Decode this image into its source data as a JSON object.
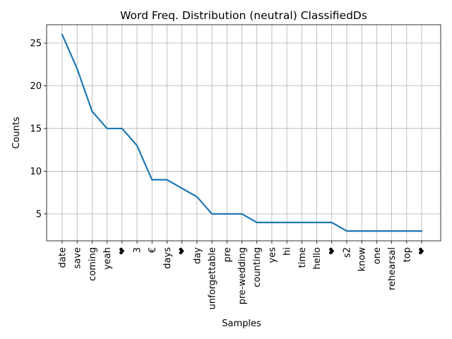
{
  "chart_data": {
    "type": "line",
    "title": "Word Freq. Distribution (neutral) ClassifiedDs",
    "xlabel": "Samples",
    "ylabel": "Counts",
    "categories": [
      "date",
      "save",
      "coming",
      "yeah",
      "❤",
      "3",
      "€",
      "days",
      "❤",
      "day",
      "unforgettable",
      "pre",
      "pre-wedding",
      "counting",
      "yes",
      "hi",
      "time",
      "hello",
      "❤",
      "s2",
      "know",
      "one",
      "rehearsal",
      "top",
      "❤"
    ],
    "series": [
      {
        "values": [
          26,
          22,
          17,
          15,
          15,
          13,
          9,
          9,
          8,
          7,
          5,
          5,
          5,
          4,
          4,
          4,
          4,
          4,
          4,
          3,
          3,
          3,
          3,
          3,
          3
        ]
      }
    ],
    "yticks": [
      5,
      10,
      15,
      20,
      25
    ],
    "ylim": [
      1.85,
      27.15
    ],
    "grid": true,
    "line_color": "#1f77b4"
  }
}
